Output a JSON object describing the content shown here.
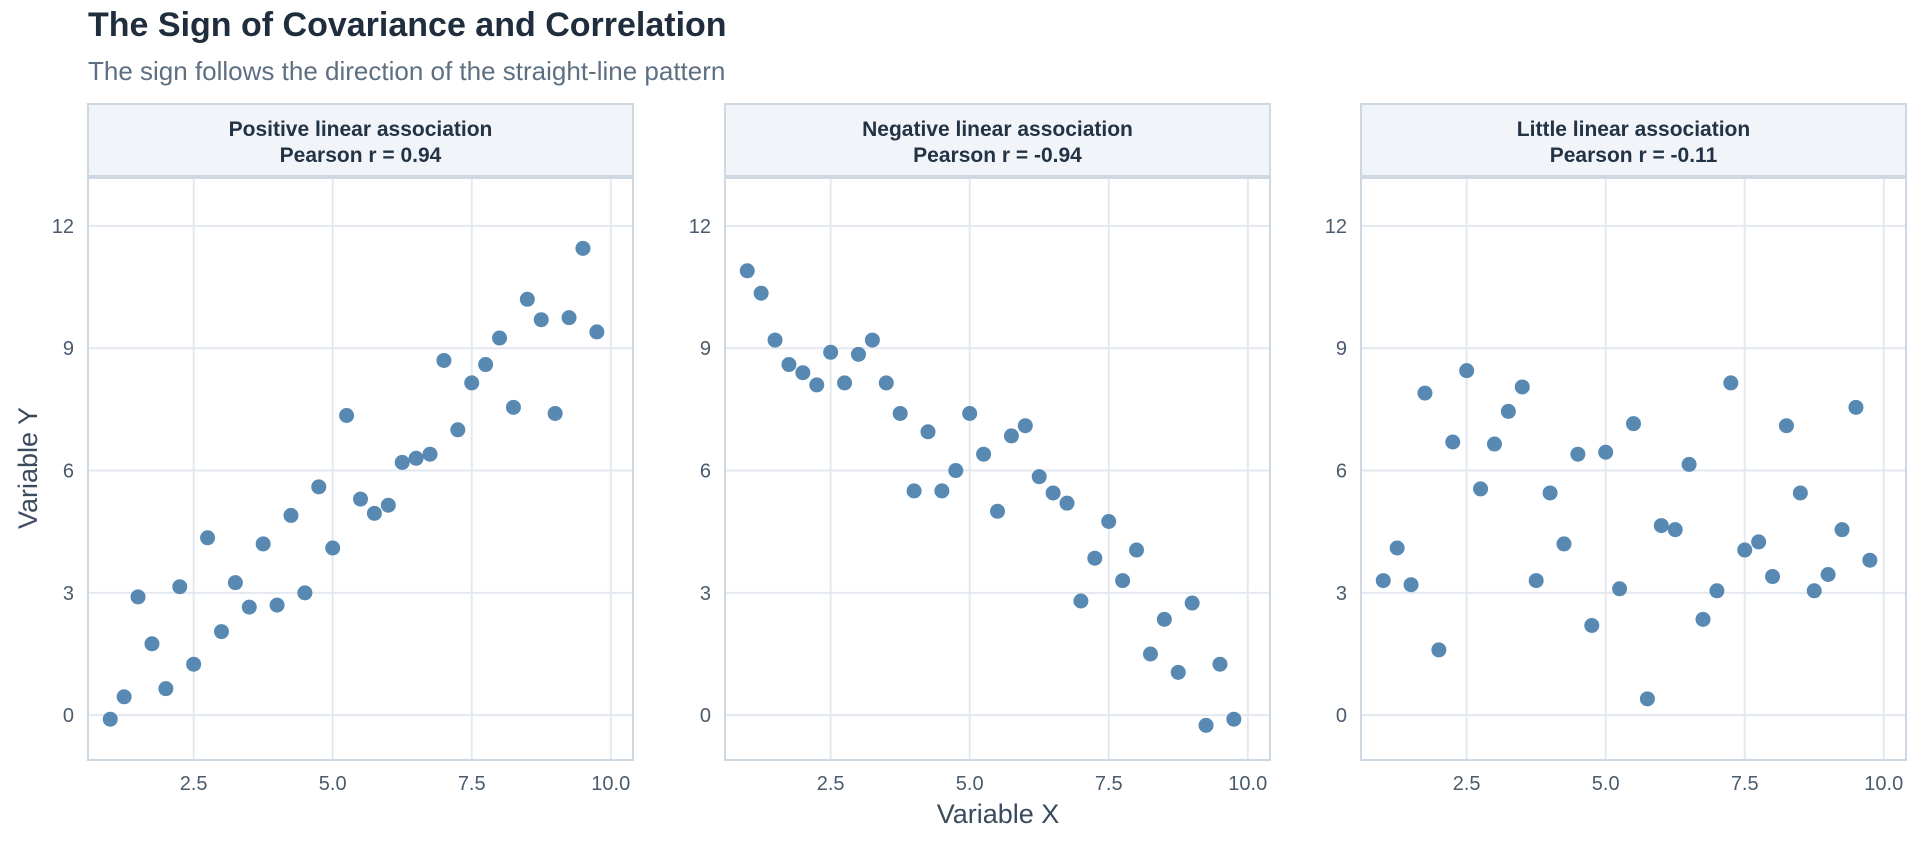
{
  "title": "The Sign of Covariance and Correlation",
  "subtitle": "The sign follows the direction of the straight-line pattern",
  "colors": {
    "point": "#4a7fab",
    "strip_bg": "#f1f5f9",
    "border": "#cdd8e3",
    "grid": "#e3e9ef",
    "text": "#233244"
  },
  "chart_data": {
    "type": "scatter",
    "xlabel": "Variable X",
    "ylabel": "Variable Y",
    "xlim": [
      0.6,
      10.4
    ],
    "ylim": [
      -1.1,
      13.2
    ],
    "xticks": [
      2.5,
      5.0,
      7.5,
      10.0
    ],
    "xtick_labels": [
      "2.5",
      "5.0",
      "7.5",
      "10.0"
    ],
    "yticks": [
      0,
      3,
      6,
      9,
      12
    ],
    "ytick_labels": [
      "0",
      "3",
      "6",
      "9",
      "12"
    ],
    "grid": true,
    "facets": [
      {
        "name": "Positive linear association",
        "stat": "Pearson r = 0.94",
        "points": [
          [
            1.0,
            -0.1
          ],
          [
            1.25,
            0.45
          ],
          [
            1.5,
            2.9
          ],
          [
            1.75,
            1.75
          ],
          [
            2.0,
            0.65
          ],
          [
            2.25,
            3.15
          ],
          [
            2.5,
            1.25
          ],
          [
            2.75,
            4.35
          ],
          [
            3.0,
            2.05
          ],
          [
            3.25,
            3.25
          ],
          [
            3.5,
            2.65
          ],
          [
            3.75,
            4.2
          ],
          [
            4.0,
            2.7
          ],
          [
            4.25,
            4.9
          ],
          [
            4.5,
            3.0
          ],
          [
            4.75,
            5.6
          ],
          [
            5.0,
            4.1
          ],
          [
            5.25,
            7.35
          ],
          [
            5.5,
            5.3
          ],
          [
            5.75,
            4.95
          ],
          [
            6.0,
            5.15
          ],
          [
            6.25,
            6.2
          ],
          [
            6.5,
            6.3
          ],
          [
            6.75,
            6.4
          ],
          [
            7.0,
            8.7
          ],
          [
            7.25,
            7.0
          ],
          [
            7.5,
            8.15
          ],
          [
            7.75,
            8.6
          ],
          [
            8.0,
            9.25
          ],
          [
            8.25,
            7.55
          ],
          [
            8.5,
            10.2
          ],
          [
            8.75,
            9.7
          ],
          [
            9.0,
            7.4
          ],
          [
            9.25,
            9.75
          ],
          [
            9.5,
            11.45
          ],
          [
            9.75,
            9.4
          ]
        ]
      },
      {
        "name": "Negative linear association",
        "stat": "Pearson r = -0.94",
        "points": [
          [
            1.0,
            10.9
          ],
          [
            1.25,
            10.35
          ],
          [
            1.5,
            9.2
          ],
          [
            1.75,
            8.6
          ],
          [
            2.0,
            8.4
          ],
          [
            2.25,
            8.1
          ],
          [
            2.5,
            8.9
          ],
          [
            2.75,
            8.15
          ],
          [
            3.0,
            8.85
          ],
          [
            3.25,
            9.2
          ],
          [
            3.5,
            8.15
          ],
          [
            3.75,
            7.4
          ],
          [
            4.0,
            5.5
          ],
          [
            4.25,
            6.95
          ],
          [
            4.5,
            5.5
          ],
          [
            4.75,
            6.0
          ],
          [
            5.0,
            7.4
          ],
          [
            5.25,
            6.4
          ],
          [
            5.5,
            5.0
          ],
          [
            5.75,
            6.85
          ],
          [
            6.0,
            7.1
          ],
          [
            6.25,
            5.85
          ],
          [
            6.5,
            5.45
          ],
          [
            6.75,
            5.2
          ],
          [
            7.0,
            2.8
          ],
          [
            7.25,
            3.85
          ],
          [
            7.5,
            4.75
          ],
          [
            7.75,
            3.3
          ],
          [
            8.0,
            4.05
          ],
          [
            8.25,
            1.5
          ],
          [
            8.5,
            2.35
          ],
          [
            8.75,
            1.05
          ],
          [
            9.0,
            2.75
          ],
          [
            9.25,
            -0.25
          ],
          [
            9.5,
            1.25
          ],
          [
            9.75,
            -0.1
          ]
        ]
      },
      {
        "name": "Little linear association",
        "stat": "Pearson r = -0.11",
        "points": [
          [
            1.0,
            3.3
          ],
          [
            1.25,
            4.1
          ],
          [
            1.5,
            3.2
          ],
          [
            1.75,
            7.9
          ],
          [
            2.0,
            1.6
          ],
          [
            2.25,
            6.7
          ],
          [
            2.5,
            8.45
          ],
          [
            2.75,
            5.55
          ],
          [
            3.0,
            6.65
          ],
          [
            3.25,
            7.45
          ],
          [
            3.5,
            8.05
          ],
          [
            3.75,
            3.3
          ],
          [
            4.0,
            5.45
          ],
          [
            4.25,
            4.2
          ],
          [
            4.5,
            6.4
          ],
          [
            4.75,
            2.2
          ],
          [
            5.0,
            6.45
          ],
          [
            5.25,
            3.1
          ],
          [
            5.5,
            7.15
          ],
          [
            5.75,
            0.4
          ],
          [
            6.0,
            4.65
          ],
          [
            6.25,
            4.55
          ],
          [
            6.5,
            6.15
          ],
          [
            6.75,
            2.35
          ],
          [
            7.0,
            3.05
          ],
          [
            7.25,
            8.15
          ],
          [
            7.5,
            4.05
          ],
          [
            7.75,
            4.25
          ],
          [
            8.0,
            3.4
          ],
          [
            8.25,
            7.1
          ],
          [
            8.5,
            5.45
          ],
          [
            8.75,
            3.05
          ],
          [
            9.0,
            3.45
          ],
          [
            9.25,
            4.55
          ],
          [
            9.5,
            7.55
          ],
          [
            9.75,
            3.8
          ]
        ]
      }
    ]
  }
}
